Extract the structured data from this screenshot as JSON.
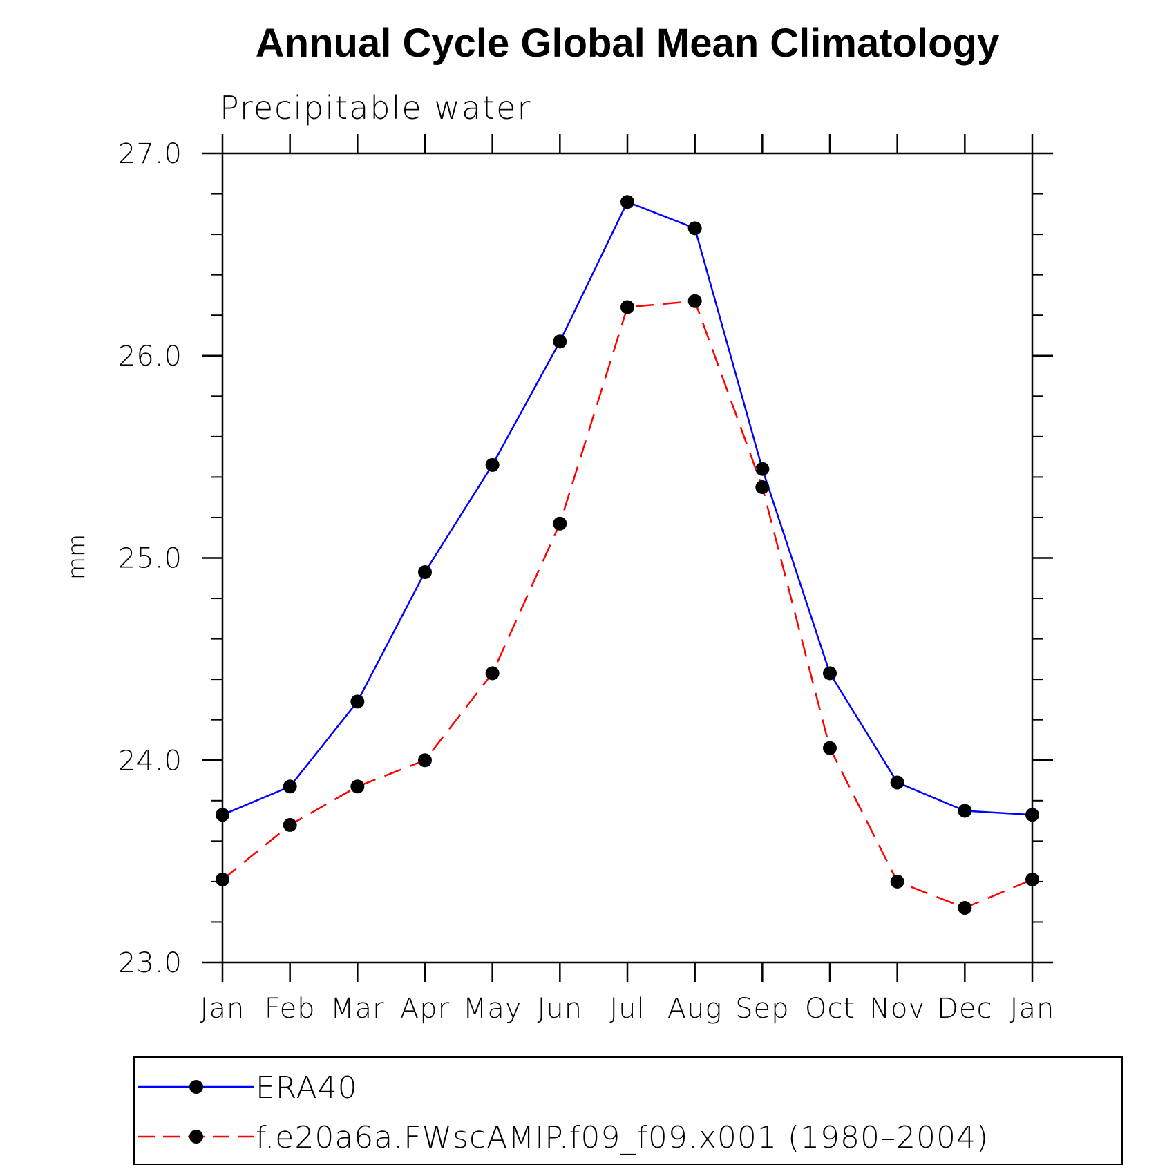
{
  "chart_data": {
    "type": "line",
    "title": "Annual Cycle Global Mean Climatology",
    "subtitle": "Precipitable water",
    "xlabel": "",
    "ylabel": "mm",
    "categories": [
      "Jan",
      "Feb",
      "Mar",
      "Apr",
      "May",
      "Jun",
      "Jul",
      "Aug",
      "Sep",
      "Oct",
      "Nov",
      "Dec",
      "Jan"
    ],
    "ylim": [
      23.0,
      27.0
    ],
    "yticks": [
      "23.0",
      "24.0",
      "25.0",
      "26.0",
      "27.0"
    ],
    "grid": false,
    "legend_position": "bottom",
    "series": [
      {
        "name": "ERA40",
        "color": "#0000ff",
        "line_style": "solid",
        "marker": "filled-circle",
        "values": [
          23.73,
          23.87,
          24.29,
          24.93,
          25.46,
          26.07,
          26.76,
          26.63,
          25.44,
          24.43,
          23.89,
          23.75,
          23.73
        ]
      },
      {
        "name": "f.e20a6a.FWscAMIP.f09_f09.x001 (1980–2004)",
        "color": "#ff0000",
        "line_style": "dashed",
        "marker": "filled-circle",
        "values": [
          23.41,
          23.68,
          23.87,
          24.0,
          24.43,
          25.17,
          26.24,
          26.27,
          25.35,
          24.06,
          23.4,
          23.27,
          23.41
        ]
      }
    ]
  }
}
